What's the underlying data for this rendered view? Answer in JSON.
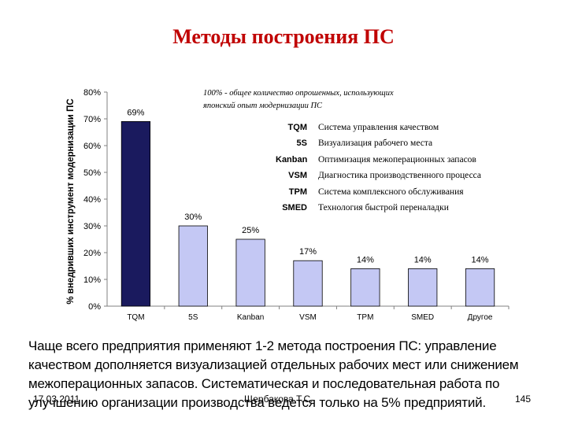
{
  "slide": {
    "title": "Методы построения ПС",
    "note": [
      "100% - общее количество опрошенных, использующих",
      "японский опыт модернизации ПС"
    ],
    "legend": [
      {
        "abbr": "TQM",
        "desc": "Система управления качеством"
      },
      {
        "abbr": "5S",
        "desc": "Визуализация рабочего места"
      },
      {
        "abbr": "Kanban",
        "desc": "Оптимизация межоперационных запасов"
      },
      {
        "abbr": "VSM",
        "desc": "Диагностика производственного процесса"
      },
      {
        "abbr": "TPM",
        "desc": "Система комплексного обслуживания"
      },
      {
        "abbr": "SMED",
        "desc": "Технология быстрой переналадки"
      }
    ],
    "summary": "Чаще всего предприятия применяют 1-2 метода построения ПС: управление качеством дополняется визуализацией отдельных рабочих мест или снижением межоперационных запасов. Систематическая и последовательная работа по улучшению организации производства ведется только на 5% предприятий.",
    "footer": {
      "date": "17.03.2011",
      "author": "Щербакова Т.С.",
      "page": "145"
    }
  },
  "chart_data": {
    "type": "bar",
    "categories": [
      "TQM",
      "5S",
      "Kanban",
      "VSM",
      "TPM",
      "SMED",
      "Другое"
    ],
    "values": [
      69,
      30,
      25,
      17,
      14,
      14,
      14
    ],
    "data_labels": [
      "69%",
      "30%",
      "25%",
      "17%",
      "14%",
      "14%",
      "14%"
    ],
    "ylabel": "% внедривших инструмент модернизации ПС",
    "xlabel": "",
    "ylim": [
      0,
      80
    ],
    "yticks": [
      "0%",
      "10%",
      "20%",
      "30%",
      "40%",
      "50%",
      "60%",
      "70%",
      "80%"
    ],
    "colors": {
      "highlight": "#1a1a5e",
      "bar": "#c4c8f4",
      "label_highlight": "#ffffff",
      "label": "#000000"
    },
    "grid": false,
    "legend": "top-right"
  }
}
